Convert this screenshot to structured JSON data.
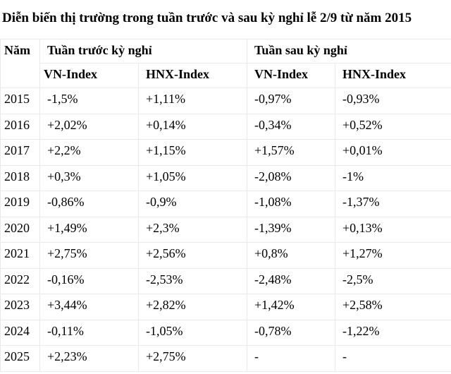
{
  "title": "Diễn biến thị trường trong tuần trước và sau kỳ nghỉ lễ 2/9 từ năm 2015",
  "table": {
    "year_header": "Năm",
    "group_headers": {
      "before": "Tuần trước kỳ nghỉ",
      "after": "Tuần sau kỳ nghỉ"
    },
    "sub_headers": {
      "before_vn": "VN-Index",
      "before_hnx": "HNX-Index",
      "after_vn": "VN-Index",
      "after_hnx": "HNX-Index"
    },
    "rows": [
      {
        "year": "2015",
        "before_vn": "-1,5%",
        "before_hnx": "+1,11%",
        "after_vn": "-0,97%",
        "after_hnx": "-0,93%"
      },
      {
        "year": "2016",
        "before_vn": "+2,02%",
        "before_hnx": "+0,14%",
        "after_vn": "-0,34%",
        "after_hnx": "+0,52%"
      },
      {
        "year": "2017",
        "before_vn": "+2,2%",
        "before_hnx": "+1,15%",
        "after_vn": "+1,57%",
        "after_hnx": "+0,01%"
      },
      {
        "year": "2018",
        "before_vn": "+0,3%",
        "before_hnx": "+1,05%",
        "after_vn": "-2,08%",
        "after_hnx": "-1%"
      },
      {
        "year": "2019",
        "before_vn": "-0,86%",
        "before_hnx": "-0,9%",
        "after_vn": "-1,08%",
        "after_hnx": "-1,37%"
      },
      {
        "year": "2020",
        "before_vn": "+1,49%",
        "before_hnx": "+2,3%",
        "after_vn": "-1,39%",
        "after_hnx": "+0,13%"
      },
      {
        "year": "2021",
        "before_vn": "+2,75%",
        "before_hnx": "+2,56%",
        "after_vn": "+0,8%",
        "after_hnx": "+1,27%"
      },
      {
        "year": "2022",
        "before_vn": "-0,16%",
        "before_hnx": "-2,53%",
        "after_vn": "-2,48%",
        "after_hnx": "-2,5%"
      },
      {
        "year": "2023",
        "before_vn": "+3,44%",
        "before_hnx": "+2,82%",
        "after_vn": "+1,42%",
        "after_hnx": "+2,58%"
      },
      {
        "year": "2024",
        "before_vn": "-0,11%",
        "before_hnx": "-1,05%",
        "after_vn": "-0,78%",
        "after_hnx": "-1,22%"
      },
      {
        "year": "2025",
        "before_vn": "+2,23%",
        "before_hnx": "+2,75%",
        "after_vn": "-",
        "after_hnx": "-"
      }
    ]
  },
  "chart_data": {
    "type": "table",
    "title": "Diễn biến thị trường trong tuần trước và sau kỳ nghỉ lễ 2/9 từ năm 2015",
    "columns": [
      "Năm",
      "Tuần trước kỳ nghỉ - VN-Index",
      "Tuần trước kỳ nghỉ - HNX-Index",
      "Tuần sau kỳ nghỉ - VN-Index",
      "Tuần sau kỳ nghỉ - HNX-Index"
    ],
    "categories": [
      2015,
      2016,
      2017,
      2018,
      2019,
      2020,
      2021,
      2022,
      2023,
      2024,
      2025
    ],
    "unit": "percent",
    "series": [
      {
        "name": "Tuần trước kỳ nghỉ - VN-Index",
        "values": [
          -1.5,
          2.02,
          2.2,
          0.3,
          -0.86,
          1.49,
          2.75,
          -0.16,
          3.44,
          -0.11,
          2.23
        ]
      },
      {
        "name": "Tuần trước kỳ nghỉ - HNX-Index",
        "values": [
          1.11,
          0.14,
          1.15,
          1.05,
          -0.9,
          2.3,
          2.56,
          -2.53,
          2.82,
          -1.05,
          2.75
        ]
      },
      {
        "name": "Tuần sau kỳ nghỉ - VN-Index",
        "values": [
          -0.97,
          -0.34,
          1.57,
          -2.08,
          -1.08,
          -1.39,
          0.8,
          -2.48,
          1.42,
          -0.78,
          null
        ]
      },
      {
        "name": "Tuần sau kỳ nghỉ - HNX-Index",
        "values": [
          -0.93,
          0.52,
          0.01,
          -1.0,
          -1.37,
          0.13,
          1.27,
          -2.5,
          2.58,
          -1.22,
          null
        ]
      }
    ]
  },
  "colors": {
    "background": "#ffffff",
    "grid": "#e8e9ea",
    "text": "#000000"
  }
}
